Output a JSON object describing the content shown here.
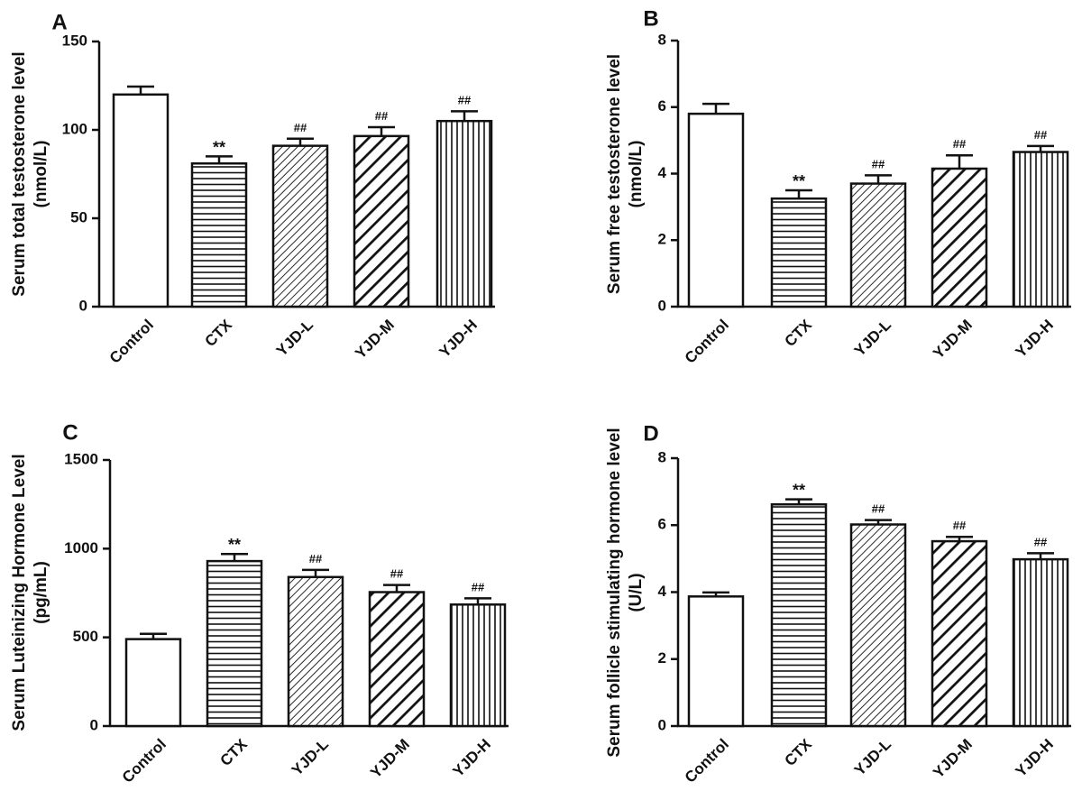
{
  "chart_data": [
    {
      "panel": "A",
      "type": "bar",
      "ylabel_lines": [
        "Serum total testosterone level",
        "(nmol/L)"
      ],
      "categories": [
        "Control",
        "CTX",
        "YJD-L",
        "YJD-M",
        "YJD-H"
      ],
      "values": [
        120,
        81,
        91,
        96.5,
        105
      ],
      "errors": [
        4.5,
        4,
        4,
        5,
        5.5
      ],
      "annotations": [
        "",
        "**",
        "##",
        "##",
        "##"
      ],
      "ylim": [
        0,
        150
      ],
      "yticks": [
        0,
        50,
        100,
        150
      ],
      "fills": [
        "open",
        "horizontal",
        "diagonal-fine",
        "diagonal-bold",
        "vertical"
      ]
    },
    {
      "panel": "B",
      "type": "bar",
      "ylabel_lines": [
        "Serum free testosterone level",
        "(nmol/L)"
      ],
      "categories": [
        "Control",
        "CTX",
        "YJD-L",
        "YJD-M",
        "YJD-H"
      ],
      "values": [
        5.8,
        3.25,
        3.7,
        4.15,
        4.65
      ],
      "errors": [
        0.3,
        0.25,
        0.25,
        0.4,
        0.18
      ],
      "annotations": [
        "",
        "**",
        "##",
        "##",
        "##"
      ],
      "ylim": [
        0,
        8
      ],
      "yticks": [
        0,
        2,
        4,
        6,
        8
      ],
      "fills": [
        "open",
        "horizontal",
        "diagonal-fine",
        "diagonal-bold",
        "vertical"
      ]
    },
    {
      "panel": "C",
      "type": "bar",
      "ylabel_lines": [
        "Serum Luteinizing Hormone Level",
        "(pg/mL)"
      ],
      "categories": [
        "Control",
        "CTX",
        "YJD-L",
        "YJD-M",
        "YJD-H"
      ],
      "values": [
        490,
        930,
        840,
        755,
        685
      ],
      "errors": [
        30,
        40,
        40,
        40,
        35
      ],
      "annotations": [
        "",
        "**",
        "##",
        "##",
        "##"
      ],
      "ylim": [
        0,
        1500
      ],
      "yticks": [
        0,
        500,
        1000,
        1500
      ],
      "fills": [
        "open",
        "horizontal",
        "diagonal-fine",
        "diagonal-bold",
        "vertical"
      ]
    },
    {
      "panel": "D",
      "type": "bar",
      "ylabel_lines": [
        "Serum follicle stimulating hormone level",
        "(U/L)"
      ],
      "categories": [
        "Control",
        "CTX",
        "YJD-L",
        "YJD-M",
        "YJD-H"
      ],
      "values": [
        3.87,
        6.62,
        6.02,
        5.52,
        4.98
      ],
      "errors": [
        0.12,
        0.15,
        0.13,
        0.13,
        0.18
      ],
      "annotations": [
        "",
        "**",
        "##",
        "##",
        "##"
      ],
      "ylim": [
        0,
        8
      ],
      "yticks": [
        0,
        2,
        4,
        6,
        8
      ],
      "fills": [
        "open",
        "horizontal",
        "diagonal-fine",
        "diagonal-bold",
        "vertical"
      ]
    }
  ]
}
